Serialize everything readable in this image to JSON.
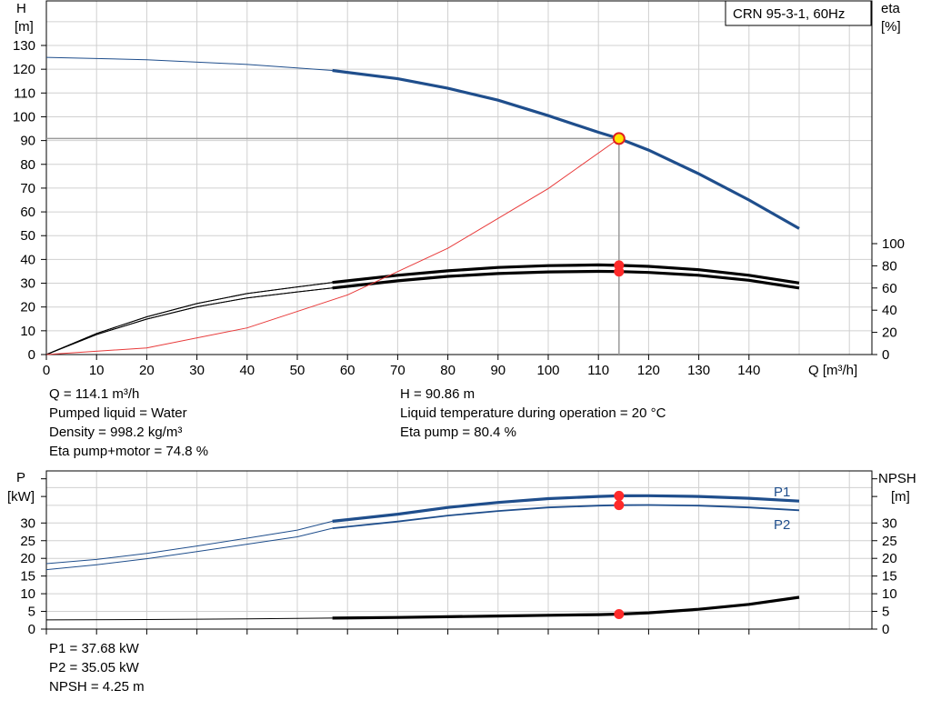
{
  "title_box": "CRN 95-3-1, 60Hz",
  "top_chart": {
    "left_axis": {
      "label": "H",
      "unit": "[m]"
    },
    "right_axis": {
      "label": "eta",
      "unit": "[%]"
    },
    "x_axis_label": "Q [m³/h]"
  },
  "bottom_chart": {
    "left_axis": {
      "label": "P",
      "unit": "[kW]"
    },
    "right_axis": {
      "label": "NPSH",
      "unit": "[m]"
    },
    "p1_label": "P1",
    "p2_label": "P2"
  },
  "info_left": [
    "Q = 114.1 m³/h",
    "Pumped liquid = Water",
    "Density = 998.2 kg/m³",
    "Eta pump+motor = 74.8 %"
  ],
  "info_right": [
    "H = 90.86 m",
    "Liquid temperature during operation = 20 °C",
    "Eta pump = 80.4 %"
  ],
  "info_bottom": [
    "P1 = 37.68 kW",
    "P2 = 35.05 kW",
    "NPSH = 4.25 m"
  ],
  "colors": {
    "curve_blue": "#1f4e8c",
    "system_curve": "#e83a3a",
    "duty_point": "#ff2a2a",
    "duty_point_fill": "#ffe300",
    "grid": "#d0d0d0"
  },
  "chart_data": [
    {
      "type": "line",
      "x_label": "Q [m³/h]",
      "y_label": "H [m]",
      "y2_label": "eta [%]",
      "xlim": [
        0,
        160
      ],
      "ylim": [
        0,
        140
      ],
      "y2lim": [
        0,
        140
      ],
      "x_ticks": [
        0,
        10,
        20,
        30,
        40,
        50,
        60,
        70,
        80,
        90,
        100,
        110,
        120,
        130,
        140
      ],
      "y_ticks": [
        0,
        10,
        20,
        30,
        40,
        50,
        60,
        70,
        80,
        90,
        100,
        110,
        120,
        130
      ],
      "y2_ticks": [
        0,
        20,
        40,
        60,
        80,
        100
      ],
      "grid": true,
      "duty_point": {
        "Q": 114.1,
        "H": 90.86,
        "eta_pump": 80.4,
        "eta_pump_motor": 74.8
      },
      "series": [
        {
          "key": "H",
          "axis": "left",
          "thin_until": 57,
          "points": [
            [
              0,
              125
            ],
            [
              20,
              124
            ],
            [
              40,
              122
            ],
            [
              57,
              119.5
            ],
            [
              70,
              116
            ],
            [
              80,
              112
            ],
            [
              90,
              107
            ],
            [
              100,
              100.5
            ],
            [
              110,
              93.5
            ],
            [
              114.1,
              90.86
            ],
            [
              120,
              86
            ],
            [
              130,
              76
            ],
            [
              140,
              65
            ],
            [
              150,
              53
            ]
          ]
        },
        {
          "key": "eta_pump",
          "axis": "right",
          "thin_until": 57,
          "points": [
            [
              0,
              0
            ],
            [
              10,
              19
            ],
            [
              20,
              34
            ],
            [
              30,
              46
            ],
            [
              40,
              55
            ],
            [
              50,
              61
            ],
            [
              57,
              65
            ],
            [
              70,
              71.5
            ],
            [
              80,
              75.5
            ],
            [
              90,
              78.5
            ],
            [
              100,
              80.2
            ],
            [
              110,
              80.8
            ],
            [
              114.1,
              80.4
            ],
            [
              120,
              79.5
            ],
            [
              130,
              76.5
            ],
            [
              140,
              71.5
            ],
            [
              150,
              64.5
            ]
          ]
        },
        {
          "key": "eta_pump_motor",
          "axis": "right",
          "thin_until": 57,
          "points": [
            [
              0,
              0
            ],
            [
              10,
              18
            ],
            [
              20,
              32
            ],
            [
              30,
              43
            ],
            [
              40,
              51
            ],
            [
              50,
              56.5
            ],
            [
              57,
              60
            ],
            [
              70,
              66.5
            ],
            [
              80,
              70.5
            ],
            [
              90,
              73
            ],
            [
              100,
              74.5
            ],
            [
              110,
              75
            ],
            [
              114.1,
              74.8
            ],
            [
              120,
              74
            ],
            [
              130,
              71.5
            ],
            [
              140,
              67
            ],
            [
              150,
              60
            ]
          ]
        },
        {
          "key": "system_curve",
          "axis": "left",
          "points": [
            [
              0,
              0
            ],
            [
              20,
              2.8
            ],
            [
              40,
              11.2
            ],
            [
              60,
              25.1
            ],
            [
              80,
              44.7
            ],
            [
              100,
              69.8
            ],
            [
              114.1,
              90.86
            ]
          ]
        }
      ]
    },
    {
      "type": "line",
      "x_label": "Q [m³/h]",
      "y_label": "P [kW]",
      "y2_label": "NPSH [m]",
      "xlim": [
        0,
        160
      ],
      "ylim": [
        0,
        45
      ],
      "y2lim": [
        0,
        45
      ],
      "y_ticks": [
        0,
        5,
        10,
        15,
        20,
        25,
        30
      ],
      "y2_ticks": [
        0,
        5,
        10,
        15,
        20,
        25,
        30
      ],
      "grid": true,
      "duty_point": {
        "Q": 114.1,
        "P1": 37.68,
        "P2": 35.05,
        "NPSH": 4.25
      },
      "series": [
        {
          "key": "P1",
          "axis": "left",
          "thin_until": 57,
          "points": [
            [
              0,
              18.5
            ],
            [
              10,
              19.7
            ],
            [
              20,
              21.4
            ],
            [
              30,
              23.5
            ],
            [
              40,
              25.7
            ],
            [
              50,
              28
            ],
            [
              57,
              30.5
            ],
            [
              70,
              32.5
            ],
            [
              80,
              34.4
            ],
            [
              90,
              35.8
            ],
            [
              100,
              36.9
            ],
            [
              110,
              37.5
            ],
            [
              114.1,
              37.68
            ],
            [
              120,
              37.7
            ],
            [
              130,
              37.5
            ],
            [
              140,
              37
            ],
            [
              150,
              36.2
            ]
          ]
        },
        {
          "key": "P2",
          "axis": "left",
          "thin_until": 57,
          "points": [
            [
              0,
              16.8
            ],
            [
              10,
              18.2
            ],
            [
              20,
              19.9
            ],
            [
              30,
              21.9
            ],
            [
              40,
              24
            ],
            [
              50,
              26.1
            ],
            [
              57,
              28.5
            ],
            [
              70,
              30.4
            ],
            [
              80,
              32.1
            ],
            [
              90,
              33.4
            ],
            [
              100,
              34.4
            ],
            [
              110,
              34.9
            ],
            [
              114.1,
              35.05
            ],
            [
              120,
              35.1
            ],
            [
              130,
              34.9
            ],
            [
              140,
              34.4
            ],
            [
              150,
              33.6
            ]
          ]
        },
        {
          "key": "NPSH",
          "axis": "right",
          "thin_until": 57,
          "points": [
            [
              0,
              2.6
            ],
            [
              20,
              2.7
            ],
            [
              40,
              2.9
            ],
            [
              57,
              3.1
            ],
            [
              70,
              3.3
            ],
            [
              80,
              3.5
            ],
            [
              90,
              3.7
            ],
            [
              100,
              3.9
            ],
            [
              110,
              4.1
            ],
            [
              114.1,
              4.25
            ],
            [
              120,
              4.6
            ],
            [
              130,
              5.6
            ],
            [
              140,
              7
            ],
            [
              150,
              9
            ]
          ]
        }
      ]
    }
  ]
}
